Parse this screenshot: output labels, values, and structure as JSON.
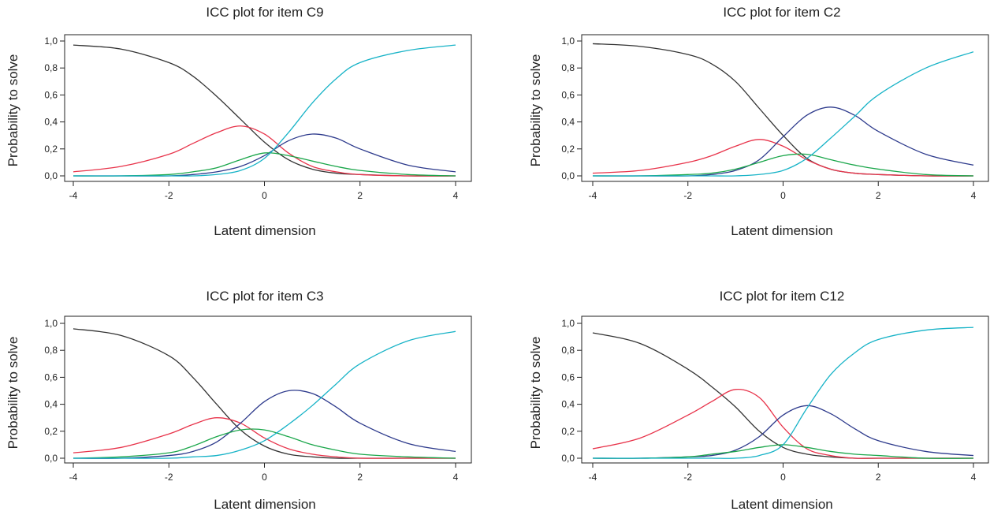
{
  "chart_data": [
    {
      "type": "line",
      "title": "ICC plot for item C9",
      "xlabel": "Latent dimension",
      "ylabel": "Probability to solve",
      "xlim": [
        -4,
        4
      ],
      "ylim": [
        0,
        1
      ],
      "x_ticks": [
        "-4",
        "-2",
        "0",
        "2",
        "4"
      ],
      "y_ticks": [
        "0,0",
        "0,2",
        "0,4",
        "0,6",
        "0,8",
        "1,0"
      ],
      "grid": false,
      "legend": "none",
      "x": [
        -4,
        -3,
        -2,
        -1.5,
        -1,
        -0.5,
        0,
        0.5,
        1,
        1.5,
        2,
        3,
        4
      ],
      "series": [
        {
          "color": "#333333",
          "values": [
            0.97,
            0.94,
            0.84,
            0.74,
            0.59,
            0.42,
            0.25,
            0.12,
            0.05,
            0.02,
            0.01,
            0.0,
            0.0
          ]
        },
        {
          "color": "#e8334a",
          "values": [
            0.03,
            0.07,
            0.16,
            0.24,
            0.32,
            0.37,
            0.31,
            0.17,
            0.07,
            0.03,
            0.01,
            0.0,
            0.0
          ]
        },
        {
          "color": "#2d3a8c",
          "values": [
            0.0,
            0.0,
            0.0,
            0.01,
            0.03,
            0.07,
            0.15,
            0.26,
            0.31,
            0.28,
            0.2,
            0.08,
            0.03
          ]
        },
        {
          "color": "#1aa64a",
          "values": [
            0.0,
            0.0,
            0.01,
            0.03,
            0.06,
            0.12,
            0.17,
            0.15,
            0.11,
            0.07,
            0.04,
            0.01,
            0.0
          ]
        },
        {
          "color": "#17b3c7",
          "values": [
            0.0,
            0.0,
            0.0,
            0.0,
            0.01,
            0.04,
            0.13,
            0.32,
            0.54,
            0.72,
            0.84,
            0.93,
            0.97
          ]
        }
      ]
    },
    {
      "type": "line",
      "title": "ICC plot for item C2",
      "xlabel": "Latent dimension",
      "ylabel": "Probability to solve",
      "xlim": [
        -4,
        4
      ],
      "ylim": [
        0,
        1
      ],
      "x_ticks": [
        "-4",
        "-2",
        "0",
        "2",
        "4"
      ],
      "y_ticks": [
        "0,0",
        "0,2",
        "0,4",
        "0,6",
        "0,8",
        "1,0"
      ],
      "grid": false,
      "legend": "none",
      "x": [
        -4,
        -3,
        -2,
        -1.5,
        -1,
        -0.5,
        0,
        0.5,
        1,
        1.5,
        2,
        3,
        4
      ],
      "series": [
        {
          "color": "#333333",
          "values": [
            0.98,
            0.96,
            0.9,
            0.83,
            0.7,
            0.5,
            0.3,
            0.13,
            0.05,
            0.02,
            0.01,
            0.0,
            0.0
          ]
        },
        {
          "color": "#e8334a",
          "values": [
            0.02,
            0.04,
            0.1,
            0.15,
            0.22,
            0.27,
            0.22,
            0.12,
            0.05,
            0.02,
            0.01,
            0.0,
            0.0
          ]
        },
        {
          "color": "#2d3a8c",
          "values": [
            0.0,
            0.0,
            0.0,
            0.01,
            0.04,
            0.12,
            0.29,
            0.45,
            0.51,
            0.45,
            0.33,
            0.16,
            0.08
          ]
        },
        {
          "color": "#1aa64a",
          "values": [
            0.0,
            0.0,
            0.01,
            0.02,
            0.05,
            0.1,
            0.15,
            0.16,
            0.12,
            0.08,
            0.05,
            0.01,
            0.0
          ]
        },
        {
          "color": "#17b3c7",
          "values": [
            0.0,
            0.0,
            0.0,
            0.0,
            0.0,
            0.01,
            0.04,
            0.13,
            0.28,
            0.44,
            0.6,
            0.8,
            0.92
          ]
        }
      ]
    },
    {
      "type": "line",
      "title": "ICC plot for item C3",
      "xlabel": "Latent dimension",
      "ylabel": "Probability to solve",
      "xlim": [
        -4,
        4
      ],
      "ylim": [
        0,
        1
      ],
      "x_ticks": [
        "-4",
        "-2",
        "0",
        "2",
        "4"
      ],
      "y_ticks": [
        "0,0",
        "0,2",
        "0,4",
        "0,6",
        "0,8",
        "1,0"
      ],
      "grid": false,
      "legend": "none",
      "x": [
        -4,
        -3,
        -2,
        -1.5,
        -1,
        -0.5,
        0,
        0.5,
        1,
        1.5,
        2,
        3,
        4
      ],
      "series": [
        {
          "color": "#333333",
          "values": [
            0.96,
            0.91,
            0.76,
            0.6,
            0.4,
            0.21,
            0.09,
            0.03,
            0.01,
            0.0,
            0.0,
            0.0,
            0.0
          ]
        },
        {
          "color": "#e8334a",
          "values": [
            0.04,
            0.08,
            0.18,
            0.25,
            0.3,
            0.26,
            0.15,
            0.07,
            0.03,
            0.01,
            0.0,
            0.0,
            0.0
          ]
        },
        {
          "color": "#2d3a8c",
          "values": [
            0.0,
            0.0,
            0.02,
            0.05,
            0.12,
            0.26,
            0.42,
            0.5,
            0.48,
            0.38,
            0.26,
            0.11,
            0.05
          ]
        },
        {
          "color": "#1aa64a",
          "values": [
            0.0,
            0.01,
            0.04,
            0.09,
            0.16,
            0.21,
            0.21,
            0.16,
            0.1,
            0.06,
            0.03,
            0.01,
            0.0
          ]
        },
        {
          "color": "#17b3c7",
          "values": [
            0.0,
            0.0,
            0.0,
            0.01,
            0.02,
            0.06,
            0.13,
            0.25,
            0.39,
            0.55,
            0.7,
            0.87,
            0.94
          ]
        }
      ]
    },
    {
      "type": "line",
      "title": "ICC plot for item C12",
      "xlabel": "Latent dimension",
      "ylabel": "Probability to solve",
      "xlim": [
        -4,
        4
      ],
      "ylim": [
        0,
        1
      ],
      "x_ticks": [
        "-4",
        "-2",
        "0",
        "2",
        "4"
      ],
      "y_ticks": [
        "0,0",
        "0,2",
        "0,4",
        "0,6",
        "0,8",
        "1,0"
      ],
      "grid": false,
      "legend": "none",
      "x": [
        -4,
        -3,
        -2,
        -1.5,
        -1,
        -0.5,
        0,
        0.5,
        1,
        1.5,
        2,
        3,
        4
      ],
      "series": [
        {
          "color": "#333333",
          "values": [
            0.93,
            0.85,
            0.66,
            0.53,
            0.38,
            0.2,
            0.08,
            0.03,
            0.01,
            0.0,
            0.0,
            0.0,
            0.0
          ]
        },
        {
          "color": "#e8334a",
          "values": [
            0.07,
            0.15,
            0.32,
            0.42,
            0.51,
            0.45,
            0.23,
            0.07,
            0.02,
            0.0,
            0.0,
            0.0,
            0.0
          ]
        },
        {
          "color": "#2d3a8c",
          "values": [
            0.0,
            0.0,
            0.01,
            0.02,
            0.06,
            0.16,
            0.32,
            0.39,
            0.33,
            0.22,
            0.13,
            0.05,
            0.02
          ]
        },
        {
          "color": "#1aa64a",
          "values": [
            0.0,
            0.0,
            0.01,
            0.03,
            0.05,
            0.08,
            0.1,
            0.08,
            0.05,
            0.03,
            0.02,
            0.0,
            0.0
          ]
        },
        {
          "color": "#17b3c7",
          "values": [
            0.0,
            0.0,
            0.0,
            0.0,
            0.0,
            0.02,
            0.1,
            0.37,
            0.62,
            0.78,
            0.88,
            0.95,
            0.97
          ]
        }
      ]
    }
  ]
}
